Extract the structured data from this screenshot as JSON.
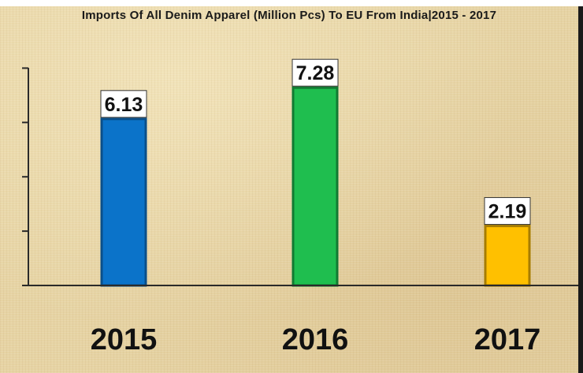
{
  "chart_data": {
    "type": "bar",
    "title": "Imports Of All Denim Apparel (Million Pcs) To EU From India|2015 - 2017",
    "categories": [
      "2015",
      "2016",
      "2017"
    ],
    "values": [
      6.13,
      7.28,
      2.19
    ],
    "data_labels": [
      "6.13",
      "7.28",
      "2.19"
    ],
    "colors": [
      "#0b73c9",
      "#1fbe4f",
      "#ffc000"
    ],
    "border_colors": [
      "#0a4f8a",
      "#127a32",
      "#a67c00"
    ],
    "ylim": [
      0,
      8
    ],
    "xlabel": "",
    "ylabel": "",
    "grid": false,
    "legend": "none",
    "y_tick_labels_shown": false
  }
}
